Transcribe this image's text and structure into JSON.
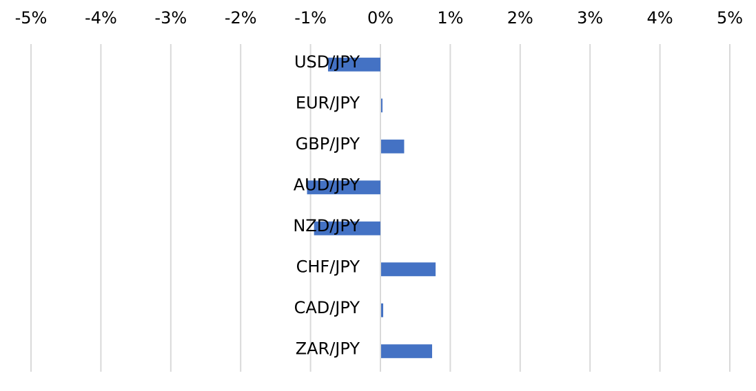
{
  "chart_data": {
    "type": "bar",
    "orientation": "horizontal",
    "title": "",
    "xlabel": "",
    "ylabel": "",
    "xlim": [
      -5,
      5
    ],
    "x_tick_values": [
      -5,
      -4,
      -3,
      -2,
      -1,
      0,
      1,
      2,
      3,
      4,
      5
    ],
    "x_tick_labels": [
      "-5%",
      "-4%",
      "-3%",
      "-2%",
      "-1%",
      "0%",
      "1%",
      "2%",
      "3%",
      "4%",
      "5%"
    ],
    "x_axis_position": "top",
    "grid": true,
    "legend": "none",
    "categories": [
      "USD/JPY",
      "EUR/JPY",
      "GBP/JPY",
      "AUD/JPY",
      "NZD/JPY",
      "CHF/JPY",
      "CAD/JPY",
      "ZAR/JPY"
    ],
    "series": [
      {
        "values": [
          -0.75,
          0.02,
          0.33,
          -1.05,
          -0.95,
          0.78,
          0.03,
          0.73
        ]
      }
    ],
    "colors": {
      "bar": "#4472c4",
      "grid": "#d9d9d9"
    }
  }
}
